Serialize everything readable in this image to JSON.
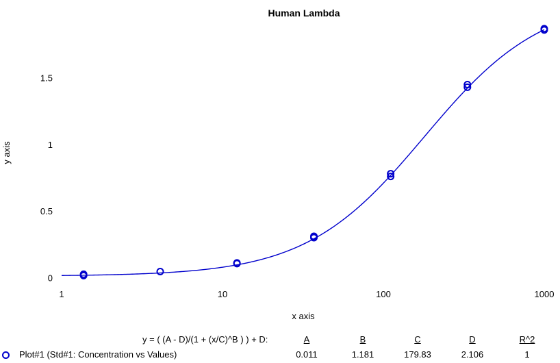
{
  "chart_data": {
    "type": "scatter",
    "title": "Human Lambda",
    "xlabel": "x axis",
    "ylabel": "y axis",
    "xscale": "log",
    "xlim": [
      1,
      1000
    ],
    "ylim": [
      -0.05,
      1.9
    ],
    "xticks": [
      1,
      10,
      100,
      1000
    ],
    "xtick_labels": [
      "1",
      "10",
      "100",
      "1000"
    ],
    "yticks": [
      0,
      0.5,
      1,
      1.5
    ],
    "ytick_labels": [
      "0",
      "0.5",
      "1",
      "1.5"
    ],
    "grid": false,
    "color": "#0000cc",
    "series": [
      {
        "name": "Plot#1 (Std#1: Concentration vs Values)",
        "marker": "circle-open",
        "points": [
          {
            "x": 1.37,
            "y": 0.015
          },
          {
            "x": 1.37,
            "y": 0.025
          },
          {
            "x": 4.1,
            "y": 0.045
          },
          {
            "x": 12.3,
            "y": 0.105
          },
          {
            "x": 12.3,
            "y": 0.11
          },
          {
            "x": 37,
            "y": 0.3
          },
          {
            "x": 37,
            "y": 0.31
          },
          {
            "x": 111,
            "y": 0.76
          },
          {
            "x": 111,
            "y": 0.78
          },
          {
            "x": 333,
            "y": 1.43
          },
          {
            "x": 333,
            "y": 1.45
          },
          {
            "x": 1000,
            "y": 1.86
          },
          {
            "x": 1000,
            "y": 1.87
          }
        ]
      }
    ],
    "fit": {
      "equation": "y = ( (A - D)/(1 + (x/C)^B ) ) + D:",
      "headers": [
        "A",
        "B",
        "C",
        "D",
        "R^2"
      ],
      "values": [
        "0.011",
        "1.181",
        "179.83",
        "2.106",
        "1"
      ],
      "A": 0.011,
      "B": 1.181,
      "C": 179.83,
      "D": 2.106
    }
  }
}
